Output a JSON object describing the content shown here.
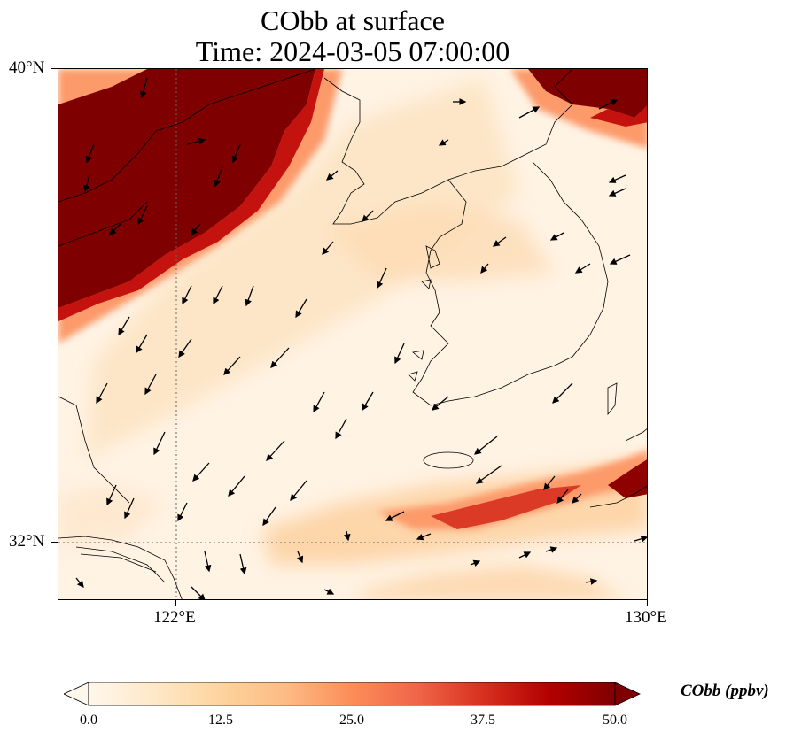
{
  "title": {
    "line1": "CObb at surface",
    "line2": "Time: 2024-03-05 07:00:00"
  },
  "map": {
    "lon_range": [
      120.2,
      130.0
    ],
    "lat_range": [
      31.1,
      40.0
    ],
    "lat_ticks": [
      {
        "value": 40,
        "label": "40°N"
      },
      {
        "value": 32,
        "label": "32°N"
      }
    ],
    "lon_ticks": [
      {
        "value": 122,
        "label": "122°E"
      },
      {
        "value": 130,
        "label": "130°E"
      }
    ],
    "gridlines": "dotted at 122°E and 32°N",
    "field": "CObb concentration (ppbv)",
    "wind_vectors": "southwestward flow over Yellow Sea",
    "high_concentration_regions": [
      "north China plain (upper left, >50 ppbv)",
      "northeast corner near 128-130°E, 39-40°N (>50 ppbv)",
      "band south of Korea near 32-33°N (25-50 ppbv)"
    ]
  },
  "colorbar": {
    "title": "CObb (ppbv)",
    "colormap": "OrRd",
    "colors": [
      "#fff7ec",
      "#fee8c8",
      "#fdd49e",
      "#fdbb84",
      "#fc8d59",
      "#ef6548",
      "#d7301f",
      "#b30000",
      "#7f0000"
    ],
    "ticks": [
      "0.0",
      "12.5",
      "25.0",
      "37.5",
      "50.0"
    ],
    "range": [
      0,
      50
    ],
    "extend": "both"
  }
}
